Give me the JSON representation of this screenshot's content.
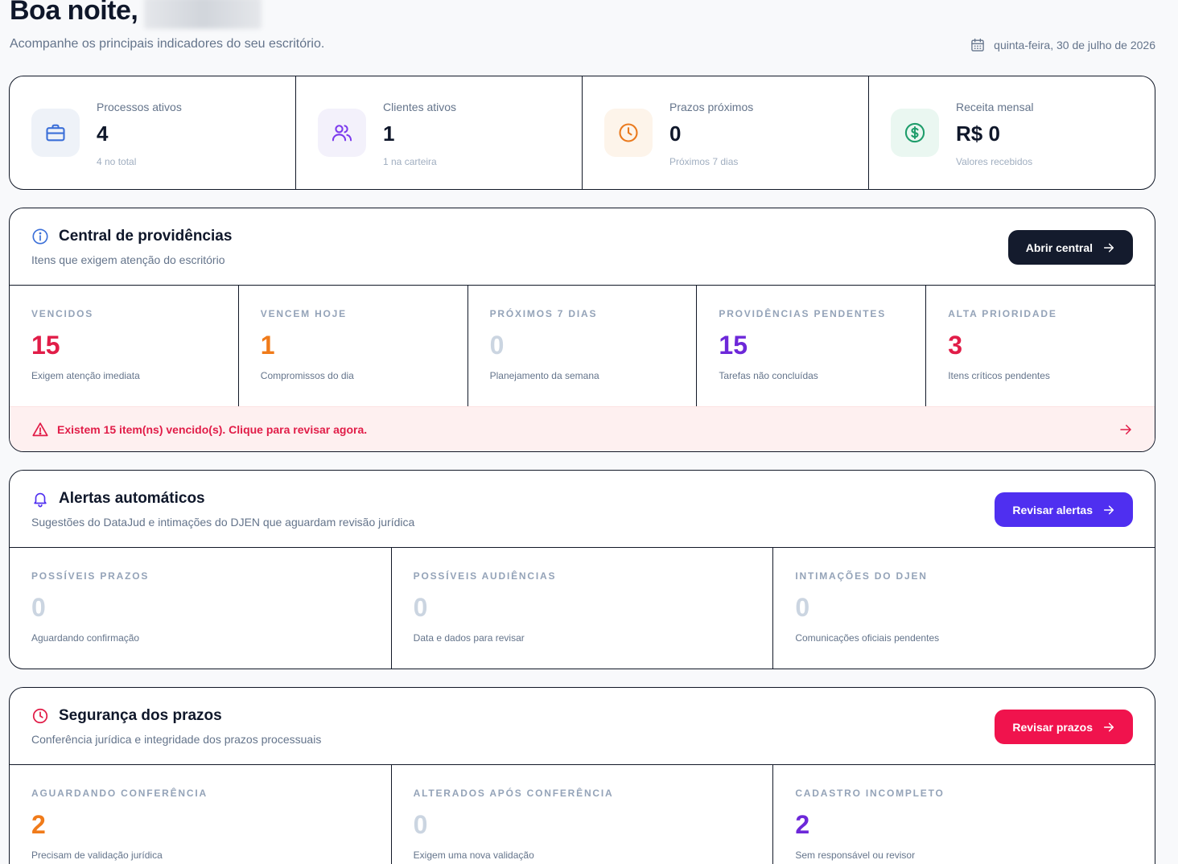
{
  "header": {
    "greeting": "Boa noite,",
    "subtitle": "Acompanhe os principais indicadores do seu escritório.",
    "date": "quinta-feira, 30 de julho de 2026"
  },
  "stats": [
    {
      "label": "Processos ativos",
      "value": "4",
      "sub": "4 no total",
      "icon": "briefcase-icon",
      "color": "#3b6fd8",
      "bg": "#eef2f8"
    },
    {
      "label": "Clientes ativos",
      "value": "1",
      "sub": "1 na carteira",
      "icon": "users-icon",
      "color": "#7c3aed",
      "bg": "#f3f1fb"
    },
    {
      "label": "Prazos próximos",
      "value": "0",
      "sub": "Próximos 7 dias",
      "icon": "clock-icon",
      "color": "#ea7a1e",
      "bg": "#fdf4ea"
    },
    {
      "label": "Receita mensal",
      "value": "R$ 0",
      "sub": "Valores recebidos",
      "icon": "dollar-icon",
      "color": "#1f9d6b",
      "bg": "#eaf7f1"
    }
  ],
  "central": {
    "title": "Central de providências",
    "desc": "Itens que exigem atenção do escritório",
    "button": "Abrir central",
    "metrics": [
      {
        "label": "VENCIDOS",
        "value": "15",
        "sub": "Exigem atenção imediata",
        "color": "#e11d48"
      },
      {
        "label": "VENCEM HOJE",
        "value": "1",
        "sub": "Compromissos do dia",
        "color": "#f07b1a"
      },
      {
        "label": "PRÓXIMOS 7 DIAS",
        "value": "0",
        "sub": "Planejamento da semana",
        "color": "#cbd5e1"
      },
      {
        "label": "PROVIDÊNCIAS PENDENTES",
        "value": "15",
        "sub": "Tarefas não concluídas",
        "color": "#6d28d9"
      },
      {
        "label": "ALTA PRIORIDADE",
        "value": "3",
        "sub": "Itens críticos pendentes",
        "color": "#e11d48"
      }
    ],
    "banner": "Existem 15 item(ns) vencido(s). Clique para revisar agora."
  },
  "alertas": {
    "title": "Alertas automáticos",
    "desc": "Sugestões do DataJud e intimações do DJEN que aguardam revisão jurídica",
    "button": "Revisar alertas",
    "metrics": [
      {
        "label": "POSSÍVEIS PRAZOS",
        "value": "0",
        "sub": "Aguardando confirmação",
        "color": "#cbd5e1"
      },
      {
        "label": "POSSÍVEIS AUDIÊNCIAS",
        "value": "0",
        "sub": "Data e dados para revisar",
        "color": "#cbd5e1"
      },
      {
        "label": "INTIMAÇÕES DO DJEN",
        "value": "0",
        "sub": "Comunicações oficiais pendentes",
        "color": "#cbd5e1"
      }
    ]
  },
  "seguranca": {
    "title": "Segurança dos prazos",
    "desc": "Conferência jurídica e integridade dos prazos processuais",
    "button": "Revisar prazos",
    "metrics": [
      {
        "label": "AGUARDANDO CONFERÊNCIA",
        "value": "2",
        "sub": "Precisam de validação jurídica",
        "color": "#f07b1a"
      },
      {
        "label": "ALTERADOS APÓS CONFERÊNCIA",
        "value": "0",
        "sub": "Exigem uma nova validação",
        "color": "#cbd5e1"
      },
      {
        "label": "CADASTRO INCOMPLETO",
        "value": "2",
        "sub": "Sem responsável ou revisor",
        "color": "#6d28d9"
      }
    ]
  },
  "colors": {
    "dark_button": "#141b2d",
    "purple_button": "#4f2ff0",
    "red_button": "#f0134d",
    "alert_red": "#e11d48"
  }
}
